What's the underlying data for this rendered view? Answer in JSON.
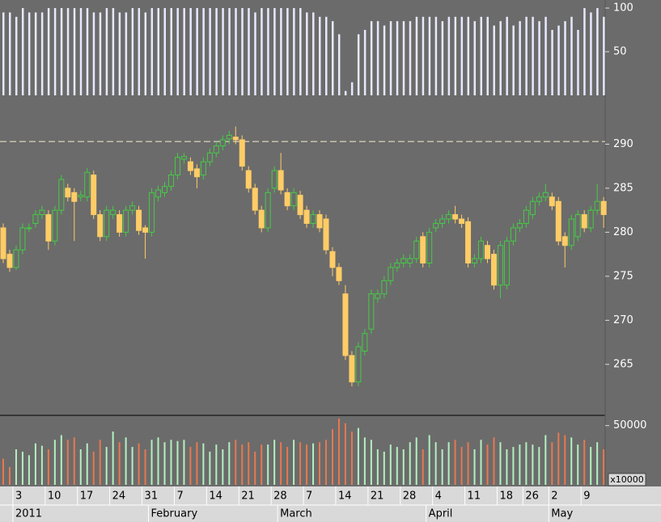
{
  "chart_data": {
    "type": "candlestick",
    "open": [
      280.5,
      277.5,
      276,
      278,
      280.5,
      281,
      282,
      282,
      279,
      282.5,
      285,
      284.5,
      284,
      284,
      286.5,
      282,
      279.5,
      282,
      282,
      280,
      282.5,
      282.5,
      280.5,
      280,
      284,
      284.5,
      285.2,
      286.5,
      288.3,
      288,
      287.2,
      286.5,
      288,
      289,
      289.8,
      290.6,
      290.8,
      290.5,
      287,
      285,
      282.5,
      280.5,
      285,
      287,
      284.5,
      283,
      284.2,
      282.5,
      281,
      282,
      281.5,
      277.8,
      276,
      273,
      266,
      263,
      266.5,
      269,
      272.5,
      273,
      274.5,
      276,
      276.5,
      276.5,
      277,
      279.5,
      276.5,
      280.5,
      281,
      281.5,
      282,
      281.5,
      281.2,
      276.5,
      277,
      278.5,
      277.5,
      274,
      274,
      279,
      280.5,
      281,
      282,
      283.5,
      284,
      284,
      283.5,
      279.5,
      278.5,
      279.5,
      282,
      280.5,
      282.5,
      283.5
    ],
    "high": [
      281,
      278,
      278.5,
      281,
      281,
      282.5,
      283,
      282.5,
      283,
      286.5,
      285.5,
      285,
      284.7,
      287.3,
      287,
      282.5,
      283,
      283,
      282.5,
      283,
      283.5,
      283,
      280.8,
      285,
      285.3,
      285.7,
      287,
      289,
      289,
      288.5,
      287.7,
      288.5,
      289.5,
      290.3,
      291,
      291.5,
      292,
      291,
      287.5,
      285.5,
      283,
      285,
      287.5,
      289,
      285,
      285,
      284.7,
      283,
      282.5,
      282.5,
      282,
      278.3,
      276.5,
      274,
      266.5,
      267.5,
      269,
      273.5,
      273.5,
      275,
      276.5,
      277,
      277.5,
      277.5,
      279.5,
      280,
      280.5,
      281.5,
      282,
      282.5,
      283,
      282,
      281.7,
      277.5,
      279.5,
      279,
      278,
      279,
      279.5,
      281,
      281.5,
      283,
      284,
      284.5,
      285.5,
      284.5,
      284,
      280,
      282,
      282.5,
      282.5,
      283,
      285.5,
      284
    ],
    "low": [
      276.5,
      275.5,
      275.7,
      277.5,
      280,
      280.5,
      281.5,
      278,
      278.5,
      282,
      283.5,
      279,
      283.5,
      283.5,
      281.5,
      279,
      279,
      281.5,
      279.5,
      279.5,
      282,
      279.7,
      277,
      279.5,
      283.5,
      284,
      284.7,
      286,
      287.8,
      286.5,
      285,
      286,
      287.5,
      288.5,
      289.3,
      290,
      290,
      287,
      284.5,
      282,
      280,
      280,
      284.5,
      284.3,
      282.5,
      282.5,
      281.5,
      280.5,
      280.5,
      280,
      277.5,
      275,
      274,
      265.5,
      262.5,
      262.5,
      266,
      268.5,
      272,
      272.5,
      274,
      275.5,
      276,
      276,
      276.5,
      276,
      276,
      280,
      280.5,
      281,
      281,
      280.5,
      276,
      276,
      276.5,
      276.5,
      273.5,
      272.5,
      273.5,
      278.5,
      280,
      280.5,
      281.5,
      283,
      283.5,
      282.5,
      278.5,
      276,
      278,
      279,
      280,
      280,
      282,
      280.5
    ],
    "close": [
      277,
      276,
      278,
      280.5,
      280.5,
      282,
      282.5,
      279,
      282.5,
      286,
      284,
      283.5,
      284.2,
      286.8,
      282,
      279.5,
      282.5,
      282.5,
      280,
      282.5,
      283,
      280.2,
      280,
      284.5,
      284.8,
      285.2,
      286.5,
      288.5,
      288.6,
      287,
      286.3,
      288,
      289,
      289.8,
      290.5,
      291,
      290.5,
      287.5,
      285,
      282.5,
      280.5,
      284.5,
      287,
      284.8,
      283,
      284.5,
      282,
      281,
      282,
      280.5,
      278,
      276,
      274.5,
      266,
      263,
      267,
      268.5,
      273,
      273,
      274.5,
      276,
      276.5,
      277,
      277,
      279,
      276.5,
      280,
      281,
      281.5,
      282,
      281.5,
      281,
      276.5,
      277,
      279,
      277,
      274,
      278.5,
      279,
      280.5,
      281,
      282.5,
      283.5,
      284,
      284.5,
      283,
      279,
      278.5,
      281.5,
      282,
      280.5,
      282.5,
      283.5,
      282
    ],
    "oscillator": [
      95,
      95,
      90,
      100,
      95,
      95,
      95,
      100,
      100,
      100,
      100,
      100,
      100,
      100,
      95,
      95,
      100,
      100,
      95,
      95,
      100,
      100,
      95,
      100,
      100,
      100,
      100,
      100,
      100,
      100,
      100,
      100,
      100,
      100,
      100,
      100,
      100,
      100,
      100,
      95,
      100,
      100,
      100,
      100,
      100,
      100,
      100,
      95,
      95,
      90,
      90,
      85,
      70,
      5,
      15,
      70,
      75,
      85,
      85,
      80,
      85,
      85,
      85,
      85,
      90,
      90,
      90,
      90,
      85,
      90,
      90,
      90,
      90,
      85,
      90,
      90,
      80,
      85,
      90,
      80,
      85,
      90,
      90,
      85,
      90,
      75,
      80,
      85,
      90,
      75,
      100,
      95,
      100,
      90
    ],
    "volume": [
      22000,
      15000,
      30000,
      28000,
      25000,
      35000,
      33000,
      30000,
      38000,
      42000,
      38000,
      40000,
      30000,
      35000,
      28000,
      38000,
      32000,
      45000,
      36000,
      40000,
      32000,
      35000,
      30000,
      38000,
      40000,
      36000,
      38000,
      37000,
      38000,
      32000,
      36000,
      35000,
      28000,
      34000,
      30000,
      36000,
      38000,
      34000,
      36000,
      28000,
      34000,
      34000,
      38000,
      36000,
      32000,
      38000,
      36000,
      34000,
      35000,
      36000,
      38000,
      47000,
      56000,
      52000,
      45000,
      48000,
      40000,
      38000,
      30000,
      28000,
      34000,
      32000,
      30000,
      36000,
      40000,
      30000,
      42000,
      36000,
      30000,
      36000,
      38000,
      32000,
      36000,
      30000,
      38000,
      34000,
      40000,
      36000,
      30000,
      32000,
      34000,
      36000,
      34000,
      32000,
      42000,
      36000,
      44000,
      42000,
      40000,
      34000,
      38000,
      32000,
      36000,
      30000
    ],
    "up_color": "#44cc44",
    "down_color": "#ffcc66",
    "volume_up_color": "#b4f0c0",
    "volume_down_color": "#e8784e",
    "oscillator_color": "#e8e8ff",
    "reference_line": 290.3,
    "ylim": [
      259.3,
      294.9
    ],
    "yticks": [
      265,
      270,
      275,
      280,
      285,
      290
    ],
    "oscillator_ylim": [
      0,
      100
    ],
    "oscillator_yticks": [
      50,
      100
    ],
    "volume_ylim": [
      0,
      58000
    ],
    "volume_yticks": [
      50000
    ],
    "volume_unit": "x10000",
    "xticks": [
      {
        "value": 2,
        "label": "3"
      },
      {
        "value": 7,
        "label": "10"
      },
      {
        "value": 12,
        "label": "17"
      },
      {
        "value": 17,
        "label": "24"
      },
      {
        "value": 22,
        "label": "31"
      },
      {
        "value": 27,
        "label": "7"
      },
      {
        "value": 32,
        "label": "14"
      },
      {
        "value": 37,
        "label": "21"
      },
      {
        "value": 42,
        "label": "28"
      },
      {
        "value": 47,
        "label": "7"
      },
      {
        "value": 52,
        "label": "14"
      },
      {
        "value": 57,
        "label": "21"
      },
      {
        "value": 62,
        "label": "28"
      },
      {
        "value": 67,
        "label": "4"
      },
      {
        "value": 72,
        "label": "11"
      },
      {
        "value": 77,
        "label": "18"
      },
      {
        "value": 81,
        "label": "26"
      },
      {
        "value": 85,
        "label": "2"
      },
      {
        "value": 90,
        "label": "9"
      }
    ],
    "months": [
      {
        "value": 2,
        "label": "2011"
      },
      {
        "value": 23,
        "label": "February"
      },
      {
        "value": 43,
        "label": "March"
      },
      {
        "value": 66,
        "label": "April"
      },
      {
        "value": 85,
        "label": "May"
      }
    ]
  }
}
